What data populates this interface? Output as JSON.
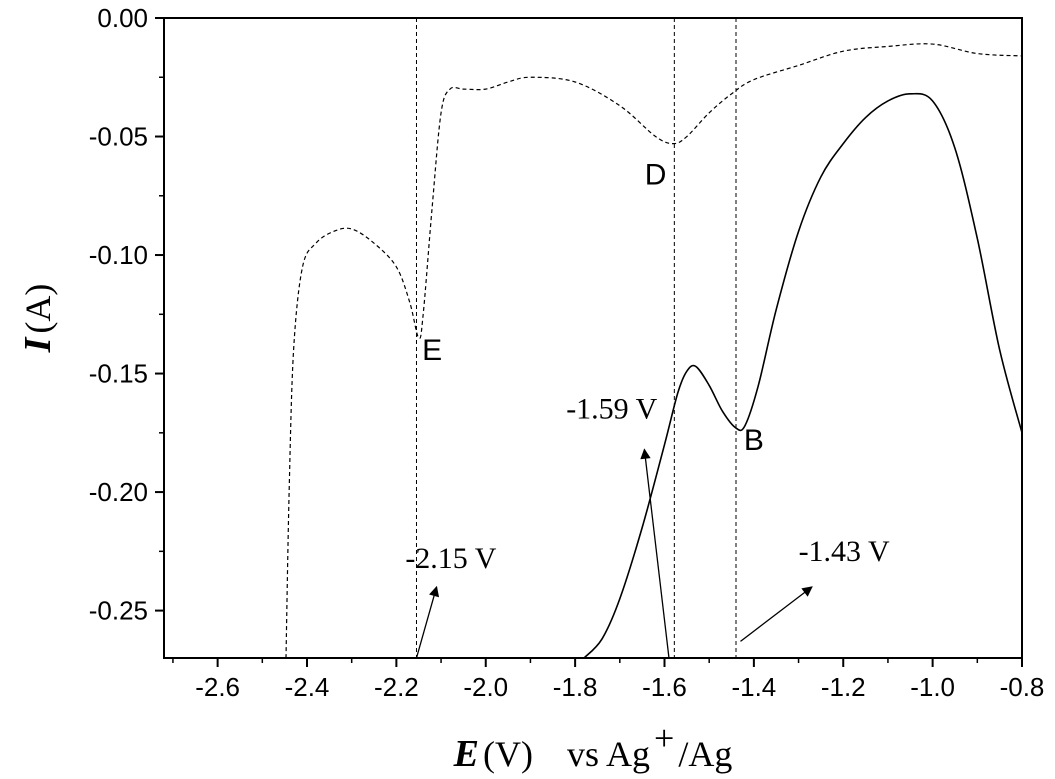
{
  "chart_data": {
    "type": "line",
    "xlabel": {
      "var": "E",
      "unit": " (V)",
      "ref_prefix": "vs Ag",
      "ref_sup": "+",
      "ref_suffix": "/Ag"
    },
    "ylabel": {
      "var": "I",
      "unit": " (A)"
    },
    "xlim": [
      -2.72,
      -0.8
    ],
    "ylim": [
      -0.27,
      0.0
    ],
    "xticks": [
      -2.6,
      -2.4,
      -2.2,
      -2.0,
      -1.8,
      -1.6,
      -1.4,
      -1.2,
      -1.0,
      -0.8
    ],
    "xtick_labels": [
      "-2.6",
      "-2.4",
      "-2.2",
      "-2.0",
      "-1.8",
      "-1.6",
      "-1.4",
      "-1.2",
      "-1.0",
      "-0.8"
    ],
    "yticks": [
      0.0,
      -0.05,
      -0.1,
      -0.15,
      -0.2,
      -0.25
    ],
    "ytick_labels": [
      "0.00",
      "-0.05",
      "-0.10",
      "-0.15",
      "-0.20",
      "-0.25"
    ],
    "grid": false,
    "series": [
      {
        "style": "dashed",
        "points": [
          [
            -2.447,
            -0.27
          ],
          [
            -2.44,
            -0.2
          ],
          [
            -2.43,
            -0.14
          ],
          [
            -2.41,
            -0.105
          ],
          [
            -2.38,
            -0.095
          ],
          [
            -2.34,
            -0.09
          ],
          [
            -2.3,
            -0.089
          ],
          [
            -2.25,
            -0.095
          ],
          [
            -2.2,
            -0.105
          ],
          [
            -2.17,
            -0.12
          ],
          [
            -2.15,
            -0.135
          ],
          [
            -2.14,
            -0.125
          ],
          [
            -2.12,
            -0.08
          ],
          [
            -2.1,
            -0.04
          ],
          [
            -2.08,
            -0.03
          ],
          [
            -2.05,
            -0.03
          ],
          [
            -2.0,
            -0.03
          ],
          [
            -1.95,
            -0.027
          ],
          [
            -1.9,
            -0.025
          ],
          [
            -1.8,
            -0.027
          ],
          [
            -1.7,
            -0.037
          ],
          [
            -1.62,
            -0.05
          ],
          [
            -1.58,
            -0.053
          ],
          [
            -1.55,
            -0.05
          ],
          [
            -1.5,
            -0.04
          ],
          [
            -1.45,
            -0.032
          ],
          [
            -1.4,
            -0.026
          ],
          [
            -1.3,
            -0.02
          ],
          [
            -1.2,
            -0.014
          ],
          [
            -1.1,
            -0.012
          ],
          [
            -1.0,
            -0.011
          ],
          [
            -0.9,
            -0.015
          ],
          [
            -0.8,
            -0.016
          ]
        ]
      },
      {
        "style": "solid",
        "points": [
          [
            -1.78,
            -0.27
          ],
          [
            -1.74,
            -0.262
          ],
          [
            -1.7,
            -0.245
          ],
          [
            -1.65,
            -0.215
          ],
          [
            -1.6,
            -0.18
          ],
          [
            -1.57,
            -0.158
          ],
          [
            -1.55,
            -0.149
          ],
          [
            -1.53,
            -0.147
          ],
          [
            -1.5,
            -0.155
          ],
          [
            -1.47,
            -0.166
          ],
          [
            -1.44,
            -0.173
          ],
          [
            -1.42,
            -0.172
          ],
          [
            -1.39,
            -0.155
          ],
          [
            -1.35,
            -0.123
          ],
          [
            -1.3,
            -0.09
          ],
          [
            -1.25,
            -0.067
          ],
          [
            -1.2,
            -0.053
          ],
          [
            -1.15,
            -0.042
          ],
          [
            -1.1,
            -0.035
          ],
          [
            -1.05,
            -0.032
          ],
          [
            -1.0,
            -0.035
          ],
          [
            -0.95,
            -0.055
          ],
          [
            -0.9,
            -0.093
          ],
          [
            -0.85,
            -0.14
          ],
          [
            -0.8,
            -0.175
          ]
        ]
      }
    ],
    "reference_lines_x": [
      -2.155,
      -1.578,
      -1.44
    ],
    "peak_labels": [
      {
        "text": "E",
        "x": -2.12,
        "y": -0.14
      },
      {
        "text": "D",
        "x": -1.62,
        "y": -0.066
      },
      {
        "text": "B",
        "x": -1.4,
        "y": -0.178
      }
    ],
    "annotations": [
      {
        "text": "-1.59 V",
        "tx": -1.82,
        "ty": -0.169,
        "ax0": -1.59,
        "ay0": -0.27,
        "ax1": -1.645,
        "ay1": -0.182
      },
      {
        "text": "-2.15 V",
        "tx": -2.18,
        "ty": -0.232,
        "ax0": -2.155,
        "ay0": -0.27,
        "ax1": -2.11,
        "ay1": -0.24
      },
      {
        "text": "-1.43 V",
        "tx": -1.3,
        "ty": -0.229,
        "ax0": -1.43,
        "ay0": -0.263,
        "ax1": -1.27,
        "ay1": -0.24
      }
    ]
  }
}
